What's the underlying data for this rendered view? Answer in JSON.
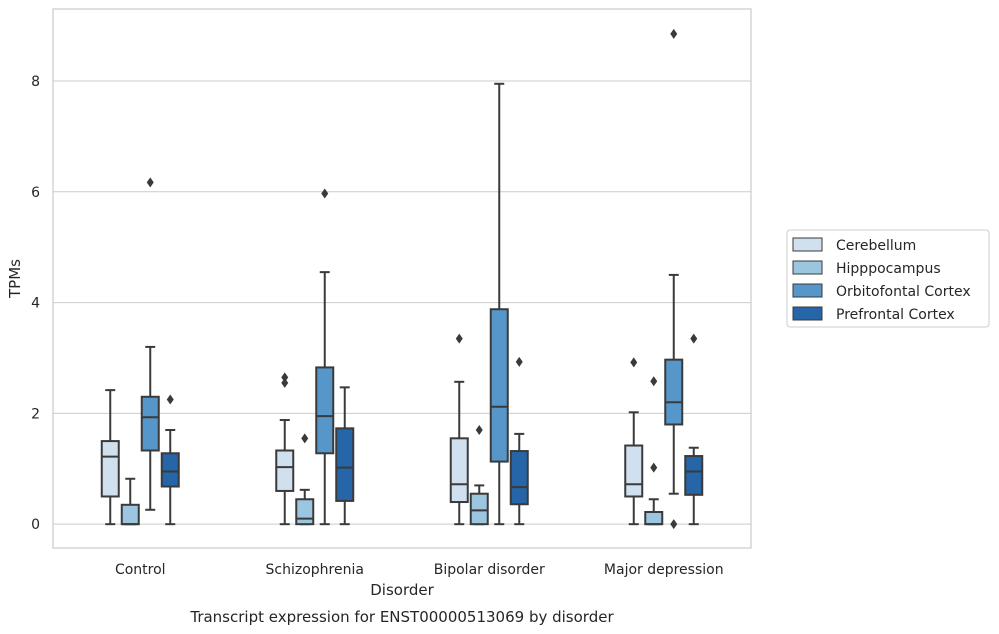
{
  "chart_data": {
    "type": "box",
    "title": "",
    "xlabel": "Disorder",
    "ylabel": "TPMs",
    "caption": "Transcript expression for ENST00000513069 by disorder",
    "ylim": [
      -0.43,
      9.3
    ],
    "yticks": [
      0,
      2,
      4,
      6,
      8
    ],
    "grid": "horizontal",
    "legend_position": "right",
    "categories": [
      "Control",
      "Schizophrenia",
      "Bipolar disorder",
      "Major depression"
    ],
    "series": [
      {
        "name": "Cerebellum",
        "color": "#d0e0ef",
        "boxes": [
          {
            "whislo": 0,
            "q1": 0.5,
            "med": 1.22,
            "q3": 1.5,
            "whishi": 2.42,
            "fliers": []
          },
          {
            "whislo": 0,
            "q1": 0.6,
            "med": 1.03,
            "q3": 1.33,
            "whishi": 1.88,
            "fliers": [
              2.55,
              2.65
            ]
          },
          {
            "whislo": 0,
            "q1": 0.4,
            "med": 0.72,
            "q3": 1.55,
            "whishi": 2.57,
            "fliers": [
              3.35
            ]
          },
          {
            "whislo": 0,
            "q1": 0.5,
            "med": 0.72,
            "q3": 1.42,
            "whishi": 2.02,
            "fliers": [
              2.92
            ]
          }
        ]
      },
      {
        "name": "Hipppocampus",
        "color": "#9cc5df",
        "boxes": [
          {
            "whislo": 0,
            "q1": 0,
            "med": 0,
            "q3": 0.35,
            "whishi": 0.82,
            "fliers": []
          },
          {
            "whislo": 0,
            "q1": 0,
            "med": 0.1,
            "q3": 0.45,
            "whishi": 0.62,
            "fliers": [
              1.55
            ]
          },
          {
            "whislo": 0,
            "q1": 0,
            "med": 0.25,
            "q3": 0.55,
            "whishi": 0.7,
            "fliers": [
              1.7
            ]
          },
          {
            "whislo": 0,
            "q1": 0,
            "med": 0,
            "q3": 0.22,
            "whishi": 0.45,
            "fliers": [
              1.02,
              2.58
            ]
          }
        ]
      },
      {
        "name": "Orbitofontal Cortex",
        "color": "#5696c8",
        "boxes": [
          {
            "whislo": 0.26,
            "q1": 1.33,
            "med": 1.93,
            "q3": 2.3,
            "whishi": 3.2,
            "fliers": [
              6.17
            ]
          },
          {
            "whislo": 0,
            "q1": 1.28,
            "med": 1.95,
            "q3": 2.83,
            "whishi": 4.55,
            "fliers": [
              5.97
            ]
          },
          {
            "whislo": 0,
            "q1": 1.13,
            "med": 2.12,
            "q3": 3.88,
            "whishi": 7.95,
            "fliers": []
          },
          {
            "whislo": 0.55,
            "q1": 1.8,
            "med": 2.2,
            "q3": 2.97,
            "whishi": 4.5,
            "fliers": [
              0,
              8.85
            ]
          }
        ]
      },
      {
        "name": "Prefrontal Cortex",
        "color": "#2565a8",
        "boxes": [
          {
            "whislo": 0,
            "q1": 0.68,
            "med": 0.95,
            "q3": 1.28,
            "whishi": 1.7,
            "fliers": [
              2.25
            ]
          },
          {
            "whislo": 0,
            "q1": 0.42,
            "med": 1.02,
            "q3": 1.73,
            "whishi": 2.47,
            "fliers": []
          },
          {
            "whislo": 0,
            "q1": 0.36,
            "med": 0.67,
            "q3": 1.32,
            "whishi": 1.63,
            "fliers": [
              2.93
            ]
          },
          {
            "whislo": 0,
            "q1": 0.53,
            "med": 0.95,
            "q3": 1.23,
            "whishi": 1.38,
            "fliers": [
              3.35
            ]
          }
        ]
      }
    ]
  }
}
